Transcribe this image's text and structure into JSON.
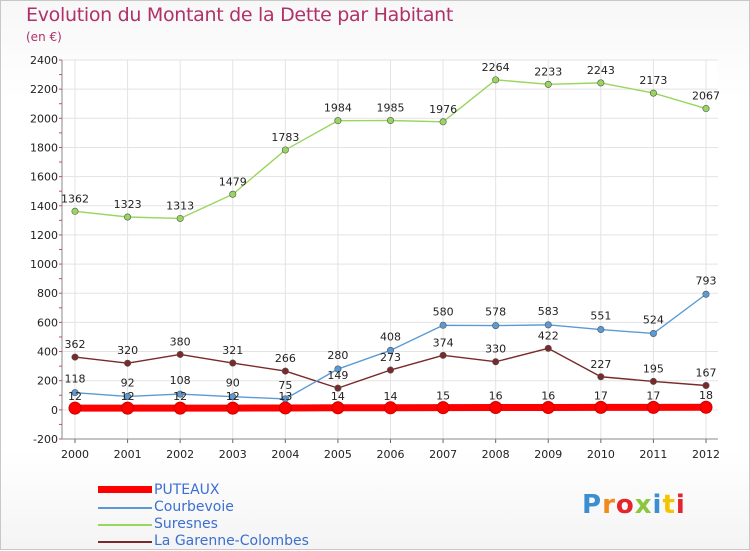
{
  "header": {
    "title": "Evolution du Montant de la Dette par Habitant",
    "unit": "(en €)"
  },
  "logo": {
    "text": "Proxiti",
    "colors": [
      "#3b8fd0",
      "#f08a1c",
      "#e2262b",
      "#8cc63f",
      "#3b8fd0",
      "#f5c400",
      "#e2262b"
    ]
  },
  "chart_data": {
    "type": "line",
    "title": "Evolution du Montant de la Dette par Habitant",
    "subtitle": "(en €)",
    "xlabel": "",
    "ylabel": "",
    "x": [
      "2000",
      "2001",
      "2002",
      "2003",
      "2004",
      "2005",
      "2006",
      "2007",
      "2008",
      "2009",
      "2010",
      "2011",
      "2012"
    ],
    "ylim": [
      -200,
      2400
    ],
    "yticks": [
      -200,
      0,
      200,
      400,
      600,
      800,
      1000,
      1200,
      1400,
      1600,
      1800,
      2000,
      2200,
      2400
    ],
    "grid": true,
    "legend_position": "bottom-left",
    "series": [
      {
        "name": "PUTEAUX",
        "color": "#ff0000",
        "values": [
          12,
          12,
          12,
          12,
          13,
          14,
          14,
          15,
          16,
          16,
          17,
          17,
          18
        ],
        "labels": [
          "12",
          "12",
          "12",
          "12",
          "13",
          "14",
          "14",
          "15",
          "16",
          "16",
          "17",
          "17",
          "18"
        ]
      },
      {
        "name": "Courbevoie",
        "color": "#5b9bd5",
        "values": [
          118,
          92,
          108,
          90,
          75,
          280,
          408,
          580,
          578,
          583,
          551,
          524,
          793
        ],
        "labels": [
          "118",
          "92",
          "108",
          "90",
          "75",
          "280",
          "408",
          "580",
          "578",
          "583",
          "551",
          "524",
          "793"
        ]
      },
      {
        "name": "Suresnes",
        "color": "#99d65f",
        "values": [
          1362,
          1323,
          1313,
          1479,
          1783,
          1984,
          1985,
          1976,
          2264,
          2233,
          2243,
          2173,
          2067
        ],
        "labels": [
          "1362",
          "1323",
          "1313",
          "1479",
          "1783",
          "1984",
          "1985",
          "1976",
          "2264",
          "2233",
          "2243",
          "2173",
          "2067"
        ]
      },
      {
        "name": "La Garenne-Colombes",
        "color": "#7a2a2a",
        "values": [
          362,
          320,
          380,
          321,
          266,
          149,
          273,
          374,
          330,
          422,
          227,
          195,
          167
        ],
        "labels": [
          "362",
          "320",
          "380",
          "321",
          "266",
          "149",
          "273",
          "374",
          "330",
          "422",
          "227",
          "195",
          "167"
        ]
      }
    ]
  }
}
